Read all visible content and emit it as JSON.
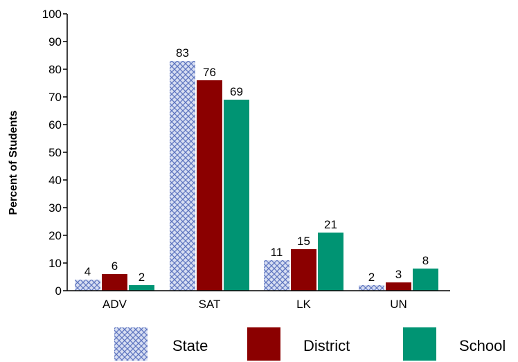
{
  "chart_data": {
    "type": "bar",
    "categories": [
      "ADV",
      "SAT",
      "LK",
      "UN"
    ],
    "series": [
      {
        "name": "State",
        "values": [
          4,
          83,
          11,
          2
        ],
        "color": "#8fa3d6",
        "pattern": "crosshatch"
      },
      {
        "name": "District",
        "values": [
          6,
          76,
          15,
          3
        ],
        "color": "#8b0000"
      },
      {
        "name": "School",
        "values": [
          2,
          69,
          21,
          8
        ],
        "color": "#009473"
      }
    ],
    "data_labels": [
      "4",
      "6",
      "2",
      "83",
      "76",
      "69",
      "11",
      "15",
      "21",
      "2",
      "3",
      "8"
    ],
    "ylabel": "Percent of Students",
    "xlabel": "",
    "ylim": [
      0,
      100
    ],
    "yticks": [
      0,
      10,
      20,
      30,
      40,
      50,
      60,
      70,
      80,
      90,
      100
    ],
    "grid": false,
    "legend_position": "bottom"
  }
}
